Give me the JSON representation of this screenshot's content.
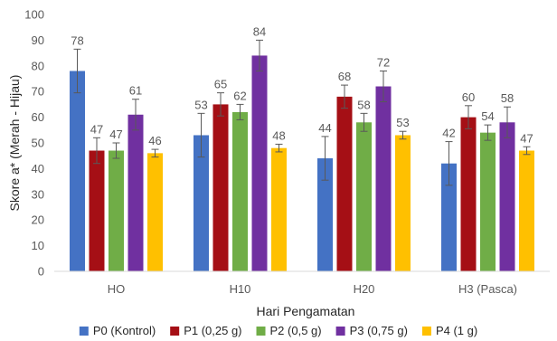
{
  "chart_data": {
    "type": "bar",
    "title": "",
    "xlabel": "Hari Pengamatan",
    "ylabel": "Skore a* (Merah - Hijau)",
    "ylim": [
      0,
      100
    ],
    "yticks": [
      0,
      10,
      20,
      30,
      40,
      50,
      60,
      70,
      80,
      90,
      100
    ],
    "grid": false,
    "legend_position": "bottom",
    "categories": [
      "HO",
      "H10",
      "H20",
      "H3 (Pasca)"
    ],
    "series": [
      {
        "name": "P0 (Kontrol)",
        "color": "#4472C4",
        "values": [
          78,
          53,
          44,
          42
        ],
        "errors": [
          8.5,
          8.5,
          8.5,
          8.5
        ]
      },
      {
        "name": "P1 (0,25 g)",
        "color": "#A50F15",
        "values": [
          47,
          65,
          68,
          60
        ],
        "errors": [
          5,
          4.5,
          4.5,
          4.5
        ]
      },
      {
        "name": "P2 (0,5 g)",
        "color": "#70AD47",
        "values": [
          47,
          62,
          58,
          54
        ],
        "errors": [
          3,
          3,
          3.5,
          3
        ]
      },
      {
        "name": "P3 (0,75 g)",
        "color": "#7030A0",
        "values": [
          61,
          84,
          72,
          58
        ],
        "errors": [
          6,
          6,
          6,
          6
        ]
      },
      {
        "name": "P4 (1 g)",
        "color": "#FFC000",
        "values": [
          46,
          48,
          53,
          47
        ],
        "errors": [
          1.5,
          1.5,
          1.5,
          1.5
        ]
      }
    ]
  }
}
